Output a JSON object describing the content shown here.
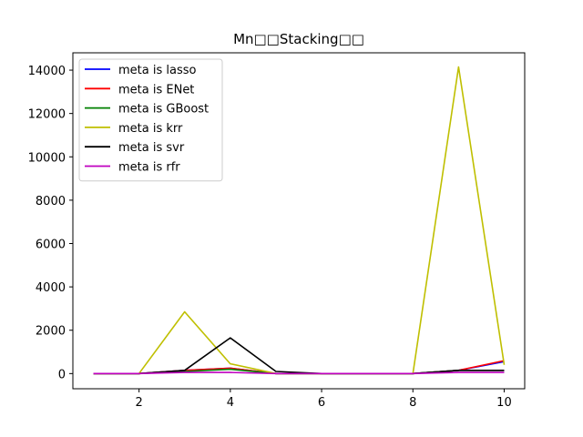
{
  "chart_data": {
    "type": "line",
    "title": "Mn□□Stacking□□",
    "xlabel": "",
    "ylabel": "",
    "x": [
      1,
      2,
      3,
      4,
      5,
      6,
      7,
      8,
      9,
      10
    ],
    "xlim": [
      0.55,
      10.45
    ],
    "ylim": [
      -700,
      14800
    ],
    "xticks": [
      2,
      4,
      6,
      8,
      10
    ],
    "yticks": [
      0,
      2000,
      4000,
      6000,
      8000,
      10000,
      12000,
      14000
    ],
    "grid": false,
    "legend_position": "top-left",
    "series": [
      {
        "name": "meta is lasso",
        "color": "#0000ff",
        "values": [
          0,
          0,
          150,
          250,
          0,
          0,
          0,
          0,
          150,
          550
        ]
      },
      {
        "name": "meta is ENet",
        "color": "#ff0000",
        "values": [
          0,
          0,
          150,
          250,
          0,
          0,
          0,
          0,
          150,
          600
        ]
      },
      {
        "name": "meta is GBoost",
        "color": "#008000",
        "values": [
          0,
          0,
          100,
          200,
          0,
          0,
          0,
          0,
          150,
          150
        ]
      },
      {
        "name": "meta is krr",
        "color": "#bfbf00",
        "values": [
          0,
          0,
          2850,
          450,
          0,
          0,
          0,
          0,
          14150,
          400
        ]
      },
      {
        "name": "meta is svr",
        "color": "#000000",
        "values": [
          0,
          0,
          150,
          1650,
          100,
          0,
          0,
          0,
          150,
          150
        ]
      },
      {
        "name": "meta is rfr",
        "color": "#bf00bf",
        "values": [
          0,
          0,
          50,
          50,
          0,
          0,
          0,
          0,
          50,
          50
        ]
      }
    ]
  }
}
